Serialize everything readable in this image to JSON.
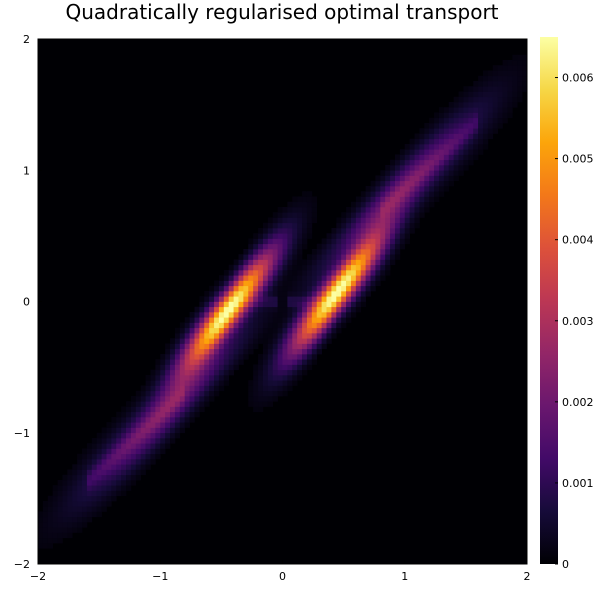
{
  "chart_data": {
    "type": "heatmap",
    "title": "Quadratically regularised optimal transport",
    "xlabel": "",
    "ylabel": "",
    "xlim": [
      -2,
      2
    ],
    "ylim": [
      -2,
      2
    ],
    "x_ticks": [
      "−2",
      "−1",
      "0",
      "1",
      "2"
    ],
    "x_tick_values": [
      -2,
      -1,
      0,
      1,
      2
    ],
    "y_ticks": [
      "−2",
      "−1",
      "0",
      "1",
      "2"
    ],
    "y_tick_values": [
      -2,
      -1,
      0,
      1,
      2
    ],
    "grid": false,
    "colormap": "inferno",
    "colorbar": {
      "range": [
        0,
        0.0065
      ],
      "ticks": [
        "0",
        "0.001",
        "0.002",
        "0.003",
        "0.004",
        "0.005",
        "0.006"
      ],
      "tick_values": [
        0,
        0.001,
        0.002,
        0.003,
        0.004,
        0.005,
        0.006
      ]
    },
    "grid_resolution": 100,
    "cell_width": 0.04,
    "background_value": 0,
    "peak_value": 0.0065,
    "high_density_regions": [
      {
        "x": [
          -0.8,
          -0.2
        ],
        "y": [
          -0.4,
          -0.05
        ],
        "value": 0.0065
      },
      {
        "x": [
          0.15,
          0.8
        ],
        "y": [
          0.05,
          0.45
        ],
        "value": 0.0065
      }
    ],
    "support_along_diagonal": {
      "x": [
        -1.55,
        1.5
      ],
      "y": [
        -1.35,
        1.25
      ]
    }
  },
  "colors": {
    "background": "#000004",
    "low": "#320a5e",
    "mid_low": "#781c6d",
    "mid": "#bc3754",
    "mid_high": "#ed6925",
    "high": "#fbb61a",
    "max": "#fcffa4"
  }
}
